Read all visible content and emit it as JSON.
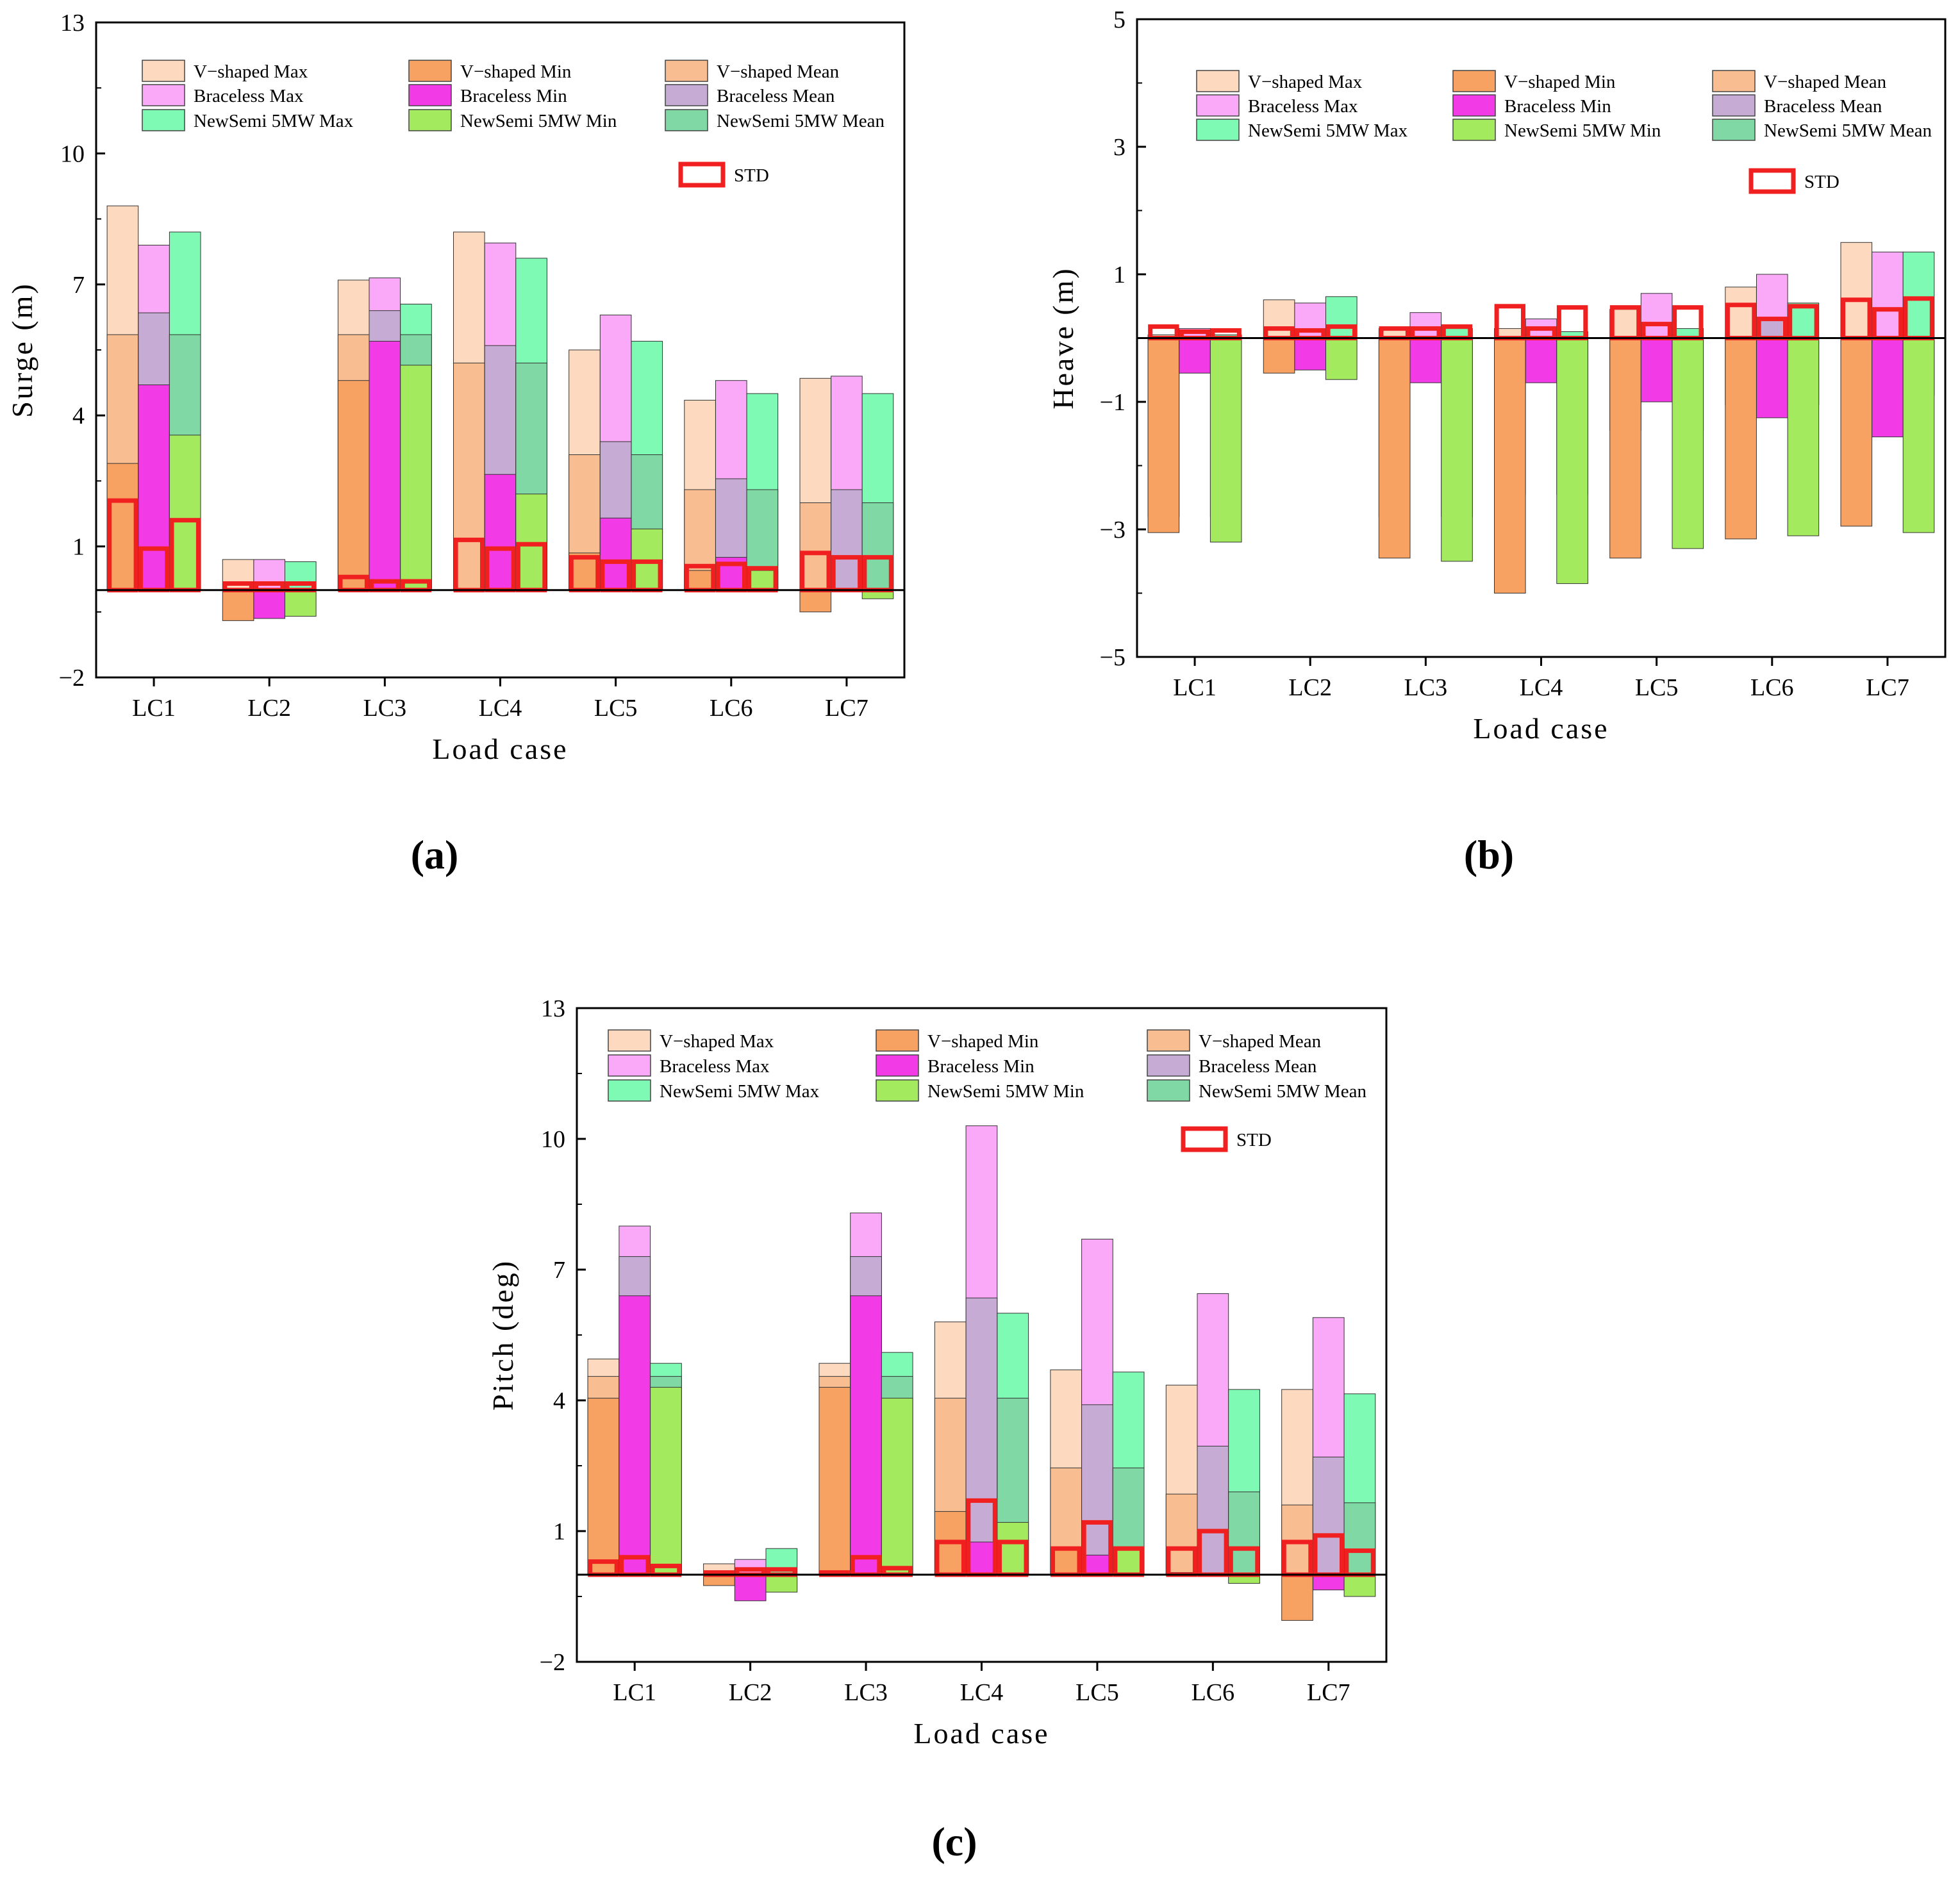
{
  "colors": {
    "vshaped_max": "#FDD9BF",
    "vshaped_min": "#F7A262",
    "vshaped_mean": "#F9BD92",
    "braceless_max": "#FAA8F8",
    "braceless_min": "#F23AE7",
    "braceless_mean": "#C6ACD5",
    "newsemi_max": "#7FFAB4",
    "newsemi_min": "#A3EA5E",
    "newsemi_mean": "#80D8A4",
    "std": "#F02020"
  },
  "legend": {
    "vshaped_max": "V−shaped Max",
    "vshaped_min": "V−shaped Min",
    "vshaped_mean": "V−shaped Mean",
    "braceless_max": "Braceless Max",
    "braceless_min": "Braceless Min",
    "braceless_mean": "Braceless Mean",
    "newsemi_max": "NewSemi 5MW Max",
    "newsemi_min": "NewSemi 5MW Min",
    "newsemi_mean": "NewSemi 5MW Mean",
    "std": "STD"
  },
  "chart_data": [
    {
      "panel": "(a)",
      "type": "bar",
      "title": "",
      "xlabel": "Load  case",
      "ylabel": "Surge  (m)",
      "ylim": [
        -2,
        13
      ],
      "yticks": [
        "−2",
        "1",
        "4",
        "7",
        "10",
        "13"
      ],
      "ytick_values": [
        -2,
        1,
        4,
        7,
        10,
        13
      ],
      "categories": [
        "LC1",
        "LC2",
        "LC3",
        "LC4",
        "LC5",
        "LC6",
        "LC7"
      ],
      "series": [
        {
          "name": "V−shaped",
          "max": [
            8.8,
            0.7,
            7.1,
            8.2,
            5.5,
            4.35,
            4.85
          ],
          "mean": [
            5.85,
            0.0,
            5.85,
            5.2,
            3.1,
            2.3,
            2.0
          ],
          "min": [
            2.9,
            -0.7,
            4.8,
            0.0,
            0.85,
            0.45,
            -0.5
          ],
          "std": [
            2.05,
            0.15,
            0.3,
            1.15,
            0.75,
            0.55,
            0.85
          ]
        },
        {
          "name": "Braceless",
          "max": [
            7.9,
            0.7,
            7.15,
            7.95,
            6.3,
            4.8,
            4.9
          ],
          "mean": [
            6.35,
            0.0,
            6.4,
            5.6,
            3.4,
            2.55,
            2.3
          ],
          "min": [
            4.7,
            -0.65,
            5.7,
            2.65,
            1.65,
            0.75,
            0.0
          ],
          "std": [
            0.95,
            0.15,
            0.2,
            0.95,
            0.65,
            0.6,
            0.75
          ]
        },
        {
          "name": "NewSemi 5MW",
          "max": [
            8.2,
            0.65,
            6.55,
            7.6,
            5.7,
            4.5,
            4.5
          ],
          "mean": [
            5.85,
            0.0,
            5.85,
            5.2,
            3.1,
            2.3,
            2.0
          ],
          "min": [
            3.55,
            -0.6,
            5.15,
            2.2,
            1.4,
            0.45,
            -0.2
          ],
          "std": [
            1.6,
            0.15,
            0.2,
            1.05,
            0.65,
            0.5,
            0.75
          ]
        }
      ]
    },
    {
      "panel": "(b)",
      "type": "bar",
      "title": "",
      "xlabel": "Load  case",
      "ylabel": "Heave  (m)",
      "ylim": [
        -5,
        5
      ],
      "yticks": [
        "−5",
        "−3",
        "−1",
        "1",
        "3",
        "5"
      ],
      "ytick_values": [
        -5,
        -3,
        -1,
        1,
        3,
        5
      ],
      "categories": [
        "LC1",
        "LC2",
        "LC3",
        "LC4",
        "LC5",
        "LC6",
        "LC7"
      ],
      "series": [
        {
          "name": "V−shaped",
          "max": [
            0.05,
            0.6,
            0.15,
            0.15,
            0.45,
            0.8,
            1.5
          ],
          "mean": [
            -2.8,
            0.0,
            -2.8,
            -2.45,
            -1.45,
            -1.05,
            -0.9
          ],
          "min": [
            -3.05,
            -0.55,
            -3.45,
            -4.0,
            -3.45,
            -3.15,
            -2.95
          ],
          "std": [
            0.18,
            0.15,
            0.15,
            0.5,
            0.48,
            0.52,
            0.6
          ]
        },
        {
          "name": "Braceless",
          "max": [
            0.15,
            0.55,
            0.4,
            0.3,
            0.7,
            1.0,
            1.35
          ],
          "mean": [
            -0.15,
            0.0,
            -0.15,
            -0.15,
            -0.05,
            0.3,
            0.0
          ],
          "min": [
            -0.55,
            -0.5,
            -0.7,
            -0.7,
            -1.0,
            -1.25,
            -1.55
          ],
          "std": [
            0.1,
            0.12,
            0.15,
            0.15,
            0.22,
            0.3,
            0.45
          ]
        },
        {
          "name": "NewSemi 5MW",
          "max": [
            0.05,
            0.65,
            0.15,
            0.1,
            0.15,
            0.55,
            1.35
          ],
          "mean": [
            -2.8,
            0.0,
            -2.8,
            -2.45,
            -1.45,
            -1.05,
            -0.9
          ],
          "min": [
            -3.2,
            -0.65,
            -3.5,
            -3.85,
            -3.3,
            -3.1,
            -3.05
          ],
          "std": [
            0.12,
            0.18,
            0.18,
            0.48,
            0.48,
            0.5,
            0.62
          ]
        }
      ]
    },
    {
      "panel": "(c)",
      "type": "bar",
      "title": "",
      "xlabel": "Load  case",
      "ylabel": "Pitch  (deg)",
      "ylim": [
        -2,
        13
      ],
      "yticks": [
        "−2",
        "1",
        "4",
        "7",
        "10",
        "13"
      ],
      "ytick_values": [
        -2,
        1,
        4,
        7,
        10,
        13
      ],
      "categories": [
        "LC1",
        "LC2",
        "LC3",
        "LC4",
        "LC5",
        "LC6",
        "LC7"
      ],
      "series": [
        {
          "name": "V−shaped",
          "max": [
            4.95,
            0.25,
            4.85,
            5.8,
            4.7,
            4.35,
            4.25
          ],
          "mean": [
            4.55,
            0.0,
            4.55,
            4.05,
            2.45,
            1.85,
            1.6
          ],
          "min": [
            4.05,
            -0.25,
            4.3,
            1.45,
            0.6,
            0.05,
            -1.05
          ],
          "std": [
            0.3,
            0.05,
            0.05,
            0.75,
            0.6,
            0.6,
            0.75
          ]
        },
        {
          "name": "Braceless",
          "max": [
            8.0,
            0.35,
            8.3,
            10.3,
            7.7,
            6.45,
            5.9
          ],
          "mean": [
            7.3,
            0.0,
            7.3,
            6.35,
            3.9,
            2.95,
            2.7
          ],
          "min": [
            6.4,
            -0.6,
            6.4,
            0.75,
            0.45,
            0.0,
            -0.35
          ],
          "std": [
            0.4,
            0.12,
            0.4,
            1.7,
            1.2,
            1.0,
            0.9
          ]
        },
        {
          "name": "NewSemi 5MW",
          "max": [
            4.85,
            0.6,
            5.1,
            6.0,
            4.65,
            4.25,
            4.15
          ],
          "mean": [
            4.55,
            0.0,
            4.55,
            4.05,
            2.45,
            1.9,
            1.65
          ],
          "min": [
            4.3,
            -0.4,
            4.05,
            1.2,
            0.6,
            -0.2,
            -0.5
          ],
          "std": [
            0.2,
            0.12,
            0.15,
            0.75,
            0.6,
            0.6,
            0.55
          ]
        }
      ]
    }
  ]
}
